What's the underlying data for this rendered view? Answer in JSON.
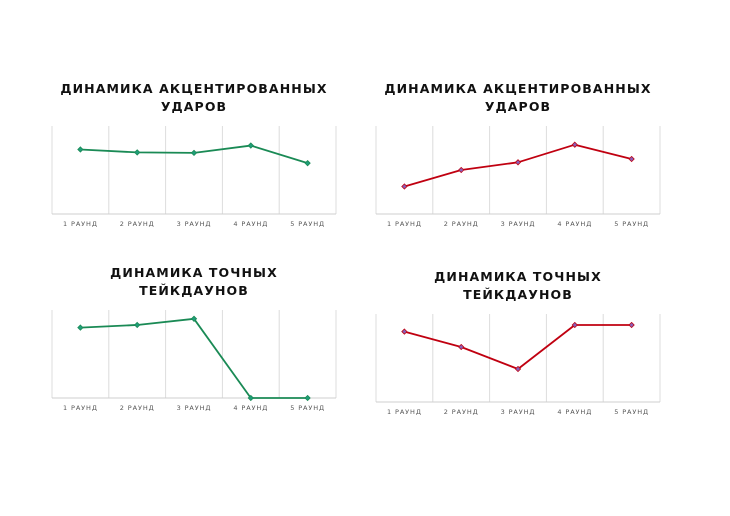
{
  "charts": [
    {
      "title_lines": [
        "ДИНАМИКА АКЦЕНТИРОВАННЫХ",
        "УДАРОВ"
      ],
      "line_color": "#1a8a55",
      "marker_fill": "#1f9e7a",
      "chart_data": {
        "type": "line",
        "categories": [
          "1 РАУНД",
          "2 РАУНД",
          "3 РАУНД",
          "4 РАУНД",
          "5 РАУНД"
        ],
        "values": [
          6.6,
          6.3,
          6.25,
          7.0,
          5.2
        ],
        "ylim": [
          0,
          9
        ],
        "grid": "vertical",
        "legend": "none"
      }
    },
    {
      "title_lines": [
        "ДИНАМИКА АКЦЕНТИРОВАННЫХ",
        "УДАРОВ"
      ],
      "line_color": "#c00010",
      "marker_fill": "#8a5fb8",
      "chart_data": {
        "type": "line",
        "categories": [
          "1 РАУНД",
          "2 РАУНД",
          "3 РАУНД",
          "4 РАУНД",
          "5 РАУНД"
        ],
        "values": [
          2.5,
          4.0,
          4.7,
          6.3,
          5.0
        ],
        "ylim": [
          0,
          8
        ],
        "grid": "vertical",
        "legend": "none"
      }
    },
    {
      "title_lines": [
        "ДИНАМИКА ТОЧНЫХ",
        "ТЕЙКДАУНОВ"
      ],
      "line_color": "#1a8a55",
      "marker_fill": "#1f9e7a",
      "chart_data": {
        "type": "line",
        "categories": [
          "1 РАУНД",
          "2 РАУНД",
          "3 РАУНД",
          "4 РАУНД",
          "5 РАУНД"
        ],
        "values": [
          8.0,
          8.3,
          9.0,
          0,
          0
        ],
        "ylim": [
          0,
          10
        ],
        "grid": "vertical",
        "legend": "none"
      }
    },
    {
      "title_lines": [
        "ДИНАМИКА ТОЧНЫХ",
        "ТЕЙКДАУНОВ"
      ],
      "line_color": "#c00010",
      "marker_fill": "#8a5fb8",
      "chart_data": {
        "type": "line",
        "categories": [
          "1 РАУНД",
          "2 РАУНД",
          "3 РАУНД",
          "4 РАУНД",
          "5 РАУНД"
        ],
        "values": [
          6.4,
          5.0,
          3.0,
          7.0,
          7.0
        ],
        "ylim": [
          0,
          8
        ],
        "grid": "vertical",
        "legend": "none"
      }
    }
  ]
}
